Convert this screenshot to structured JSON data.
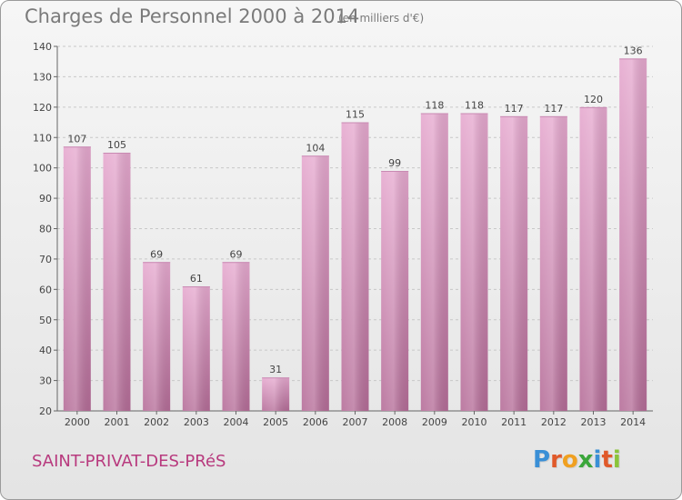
{
  "header": {
    "title": "Charges de Personnel 2000 à 2014",
    "subtitle": "(en milliers d'€)"
  },
  "footer": {
    "commune": "SAINT-PRIVAT-DES-PRéS",
    "logo_letters": [
      "P",
      "r",
      "o",
      "x",
      "i",
      "t",
      "i"
    ]
  },
  "colors": {
    "bar_top": "#e6a9cf",
    "bar_bottom": "#b56d98",
    "commune_text": "#b83a7e",
    "logo": [
      "#3a8fd6",
      "#e0592a",
      "#f0a020",
      "#3aa63a",
      "#3a8fd6",
      "#e0592a",
      "#8ac43a"
    ]
  },
  "chart_data": {
    "type": "bar",
    "categories": [
      "2000",
      "2001",
      "2002",
      "2003",
      "2004",
      "2005",
      "2006",
      "2007",
      "2008",
      "2009",
      "2010",
      "2011",
      "2012",
      "2013",
      "2014"
    ],
    "values": [
      107,
      105,
      69,
      61,
      69,
      31,
      104,
      115,
      99,
      118,
      118,
      117,
      117,
      120,
      136
    ],
    "title": "Charges de Personnel 2000 à 2014",
    "subtitle": "(en milliers d'€)",
    "ylim": [
      20,
      140
    ],
    "yticks": [
      20,
      30,
      40,
      50,
      60,
      70,
      80,
      90,
      100,
      110,
      120,
      130,
      140
    ],
    "grid": true
  }
}
